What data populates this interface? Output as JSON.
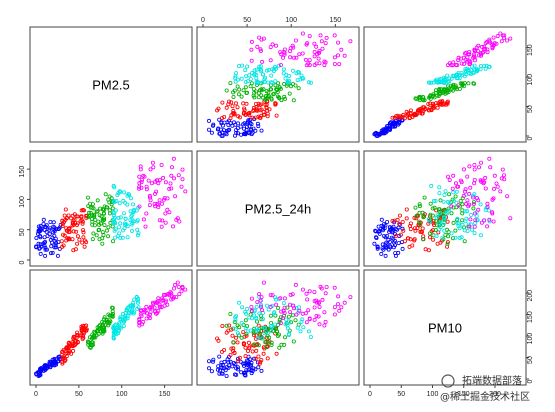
{
  "chart_data": {
    "type": "scatter",
    "variables": [
      "PM2.5",
      "PM2.5_24h",
      "PM10"
    ],
    "axes": {
      "PM2.5": {
        "ticks": [
          "0",
          "50",
          "100",
          "150"
        ],
        "range": [
          0,
          175
        ]
      },
      "PM2.5_24h": {
        "ticks": [
          "0",
          "50",
          "100",
          "150"
        ],
        "range": [
          0,
          170
        ]
      },
      "PM10": {
        "ticks": [
          "0",
          "50",
          "100",
          "150",
          "200"
        ],
        "range": [
          0,
          240
        ]
      }
    },
    "point_groups": [
      {
        "color": "#0000ff",
        "pm25": [
          0,
          30
        ],
        "pm25_24h": [
          5,
          70
        ],
        "pm10": [
          0,
          60
        ]
      },
      {
        "color": "#ff0000",
        "pm25": [
          30,
          60
        ],
        "pm25_24h": [
          15,
          90
        ],
        "pm10": [
          30,
          140
        ]
      },
      {
        "color": "#00b000",
        "pm25": [
          60,
          90
        ],
        "pm25_24h": [
          25,
          110
        ],
        "pm10": [
          60,
          170
        ]
      },
      {
        "color": "#00e5e5",
        "pm25": [
          90,
          120
        ],
        "pm25_24h": [
          30,
          130
        ],
        "pm10": [
          90,
          200
        ]
      },
      {
        "color": "#ff00ff",
        "pm25": [
          120,
          175
        ],
        "pm25_24h": [
          40,
          170
        ],
        "pm10": [
          120,
          240
        ]
      }
    ],
    "grid": false,
    "legend": "none",
    "marker": "open-circle"
  },
  "watermark": {
    "line1": "拓端数据部落",
    "line2": "@稀土掘金技术社区"
  }
}
